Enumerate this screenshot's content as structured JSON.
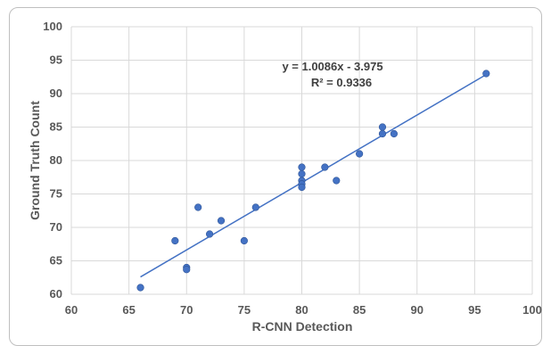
{
  "chart_data": {
    "type": "scatter",
    "title": "",
    "xlabel": "R-CNN Detection",
    "ylabel": "Ground Truth Count",
    "xlim": [
      60,
      100
    ],
    "ylim": [
      60,
      100
    ],
    "xticks": [
      60,
      65,
      70,
      75,
      80,
      85,
      90,
      95,
      100
    ],
    "yticks": [
      60,
      65,
      70,
      75,
      80,
      85,
      90,
      95,
      100
    ],
    "grid": "vertical and horizontal",
    "legend": "none",
    "colors": {
      "points": "#4472c4",
      "trendline": "#4472c4",
      "grid": "#d9d9d9"
    },
    "series": [
      {
        "points": [
          {
            "x": 66,
            "y": 61
          },
          {
            "x": 69,
            "y": 68
          },
          {
            "x": 70,
            "y": 64
          },
          {
            "x": 70,
            "y": 63.7
          },
          {
            "x": 71,
            "y": 73
          },
          {
            "x": 72,
            "y": 69
          },
          {
            "x": 73,
            "y": 71
          },
          {
            "x": 75,
            "y": 68
          },
          {
            "x": 76,
            "y": 73
          },
          {
            "x": 80,
            "y": 79
          },
          {
            "x": 80,
            "y": 78
          },
          {
            "x": 80,
            "y": 77
          },
          {
            "x": 80,
            "y": 76.5
          },
          {
            "x": 80,
            "y": 76
          },
          {
            "x": 82,
            "y": 79
          },
          {
            "x": 83,
            "y": 77
          },
          {
            "x": 85,
            "y": 81
          },
          {
            "x": 87,
            "y": 85
          },
          {
            "x": 87,
            "y": 84
          },
          {
            "x": 88,
            "y": 84
          },
          {
            "x": 96,
            "y": 93
          }
        ]
      }
    ],
    "trendline": {
      "slope": 1.0086,
      "intercept": -3.975,
      "x_range": [
        66,
        96
      ],
      "equation_label": "y = 1.0086x - 3.975",
      "r2_label": "R² = 0.9336"
    }
  }
}
